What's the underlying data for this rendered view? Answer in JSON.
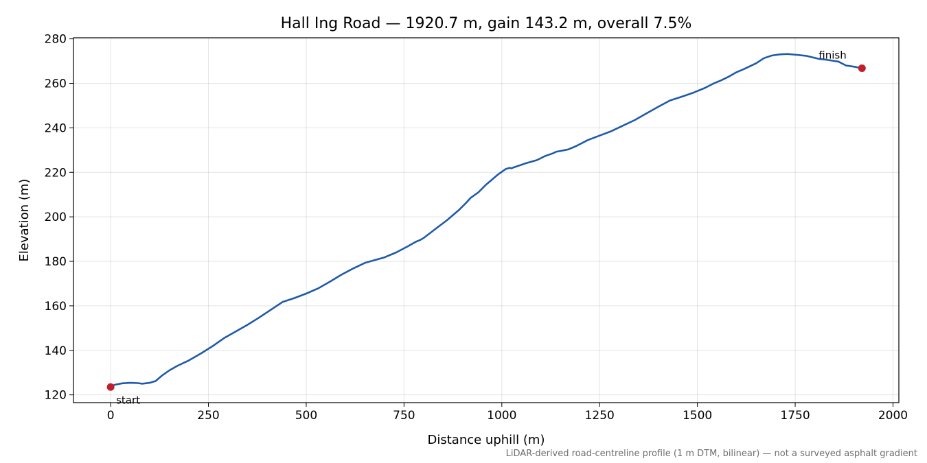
{
  "chart_data": {
    "type": "line",
    "title": "Hall Ing Road — 1920.7 m, gain 143.2 m, overall 7.5%",
    "xlabel": "Distance uphill (m)",
    "ylabel": "Elevation (m)",
    "xlim": [
      -95,
      2015
    ],
    "ylim": [
      116.5,
      280.5
    ],
    "xticks": [
      0,
      250,
      500,
      750,
      1000,
      1250,
      1500,
      1750,
      2000
    ],
    "yticks": [
      120,
      140,
      160,
      180,
      200,
      220,
      240,
      260,
      280
    ],
    "grid": true,
    "series": [
      {
        "color": "#1f5aa8",
        "x": [
          0,
          10,
          30,
          50,
          70,
          80,
          100,
          115,
          130,
          150,
          170,
          200,
          230,
          260,
          290,
          320,
          350,
          380,
          410,
          440,
          470,
          500,
          530,
          560,
          590,
          620,
          650,
          670,
          700,
          730,
          760,
          780,
          790,
          800,
          830,
          860,
          890,
          910,
          920,
          940,
          960,
          990,
          1010,
          1020,
          1025,
          1030,
          1060,
          1090,
          1110,
          1130,
          1140,
          1150,
          1170,
          1190,
          1220,
          1250,
          1280,
          1310,
          1340,
          1370,
          1400,
          1430,
          1460,
          1490,
          1520,
          1540,
          1560,
          1580,
          1600,
          1620,
          1650,
          1670,
          1690,
          1710,
          1730,
          1755,
          1780,
          1810,
          1830,
          1860,
          1880,
          1900,
          1920
        ],
        "y": [
          123.5,
          124.5,
          125.2,
          125.4,
          125.3,
          125.0,
          125.4,
          126.2,
          128.5,
          131.0,
          133.0,
          135.5,
          138.5,
          141.8,
          145.5,
          148.5,
          151.5,
          154.8,
          158.3,
          161.8,
          163.5,
          165.5,
          167.8,
          170.8,
          174.0,
          176.8,
          179.3,
          180.3,
          181.8,
          184.0,
          186.8,
          188.8,
          189.5,
          190.5,
          194.5,
          198.5,
          203.0,
          206.5,
          208.5,
          211.0,
          214.5,
          219.0,
          221.5,
          222.0,
          221.8,
          222.2,
          224.0,
          225.5,
          227.3,
          228.5,
          229.3,
          229.6,
          230.3,
          231.8,
          234.5,
          236.5,
          238.5,
          241.0,
          243.5,
          246.5,
          249.5,
          252.3,
          254.0,
          255.8,
          258.0,
          259.8,
          261.3,
          263.0,
          265.0,
          266.5,
          269.0,
          271.3,
          272.5,
          273.0,
          273.2,
          272.8,
          272.3,
          271.0,
          270.6,
          269.8,
          268.0,
          267.5,
          266.8
        ]
      }
    ],
    "markers": [
      {
        "x": 0,
        "y": 123.5,
        "color": "#c0202a",
        "label": "start",
        "label_position": "below-right"
      },
      {
        "x": 1920.7,
        "y": 266.8,
        "color": "#c0202a",
        "label": "finish",
        "label_position": "above-left"
      }
    ],
    "footnote": "LiDAR-derived road-centreline profile (1 m DTM, bilinear) — not a surveyed asphalt gradient"
  }
}
